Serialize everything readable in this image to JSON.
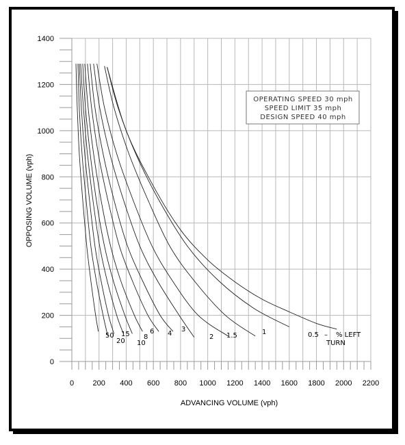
{
  "chart_data": {
    "type": "line",
    "title": "",
    "xlabel": "ADVANCING VOLUME (vph)",
    "ylabel": "OPPOSING VOLUME (vph)",
    "xlim": [
      0,
      2200
    ],
    "ylim": [
      0,
      1400
    ],
    "x_ticks": [
      "0",
      "200",
      "400",
      "600",
      "800",
      "1000",
      "1200",
      "1400",
      "1600",
      "1800",
      "2000",
      "2200"
    ],
    "y_ticks": [
      "0",
      "200",
      "400",
      "600",
      "800",
      "1000",
      "1200",
      "1400"
    ],
    "grid": true,
    "annotation_lines": [
      "OPERATING SPEED 30 mph",
      "SPEED LIMIT 35 mph",
      "DESIGN SPEED 40 mph"
    ],
    "legend_placement": "top-right",
    "left_turn_label": "% LEFT",
    "left_turn_label2": "TURN",
    "series": [
      {
        "name": "50",
        "points": [
          [
            30,
            1290
          ],
          [
            40,
            1100
          ],
          [
            55,
            900
          ],
          [
            80,
            700
          ],
          [
            110,
            500
          ],
          [
            140,
            350
          ],
          [
            175,
            200
          ],
          [
            195,
            130
          ]
        ]
      },
      {
        "name": "20",
        "points": [
          [
            45,
            1290
          ],
          [
            55,
            1100
          ],
          [
            75,
            900
          ],
          [
            105,
            700
          ],
          [
            140,
            500
          ],
          [
            180,
            350
          ],
          [
            230,
            200
          ],
          [
            265,
            110
          ]
        ]
      },
      {
        "name": "15",
        "points": [
          [
            55,
            1290
          ],
          [
            70,
            1100
          ],
          [
            95,
            900
          ],
          [
            130,
            700
          ],
          [
            170,
            500
          ],
          [
            215,
            350
          ],
          [
            270,
            200
          ],
          [
            310,
            120
          ]
        ]
      },
      {
        "name": "10",
        "points": [
          [
            65,
            1290
          ],
          [
            85,
            1100
          ],
          [
            115,
            900
          ],
          [
            155,
            700
          ],
          [
            205,
            500
          ],
          [
            260,
            350
          ],
          [
            330,
            200
          ],
          [
            380,
            120
          ]
        ]
      },
      {
        "name": "8",
        "points": [
          [
            80,
            1290
          ],
          [
            100,
            1100
          ],
          [
            135,
            900
          ],
          [
            180,
            700
          ],
          [
            240,
            500
          ],
          [
            305,
            350
          ],
          [
            390,
            200
          ],
          [
            445,
            120
          ]
        ]
      },
      {
        "name": "6",
        "points": [
          [
            95,
            1290
          ],
          [
            120,
            1100
          ],
          [
            160,
            900
          ],
          [
            215,
            700
          ],
          [
            285,
            500
          ],
          [
            360,
            350
          ],
          [
            460,
            200
          ],
          [
            520,
            130
          ]
        ]
      },
      {
        "name": "4",
        "points": [
          [
            115,
            1290
          ],
          [
            145,
            1100
          ],
          [
            195,
            900
          ],
          [
            265,
            700
          ],
          [
            350,
            500
          ],
          [
            445,
            350
          ],
          [
            560,
            200
          ],
          [
            640,
            130
          ]
        ]
      },
      {
        "name": "3",
        "points": [
          [
            135,
            1290
          ],
          [
            170,
            1100
          ],
          [
            230,
            900
          ],
          [
            310,
            700
          ],
          [
            410,
            500
          ],
          [
            520,
            350
          ],
          [
            650,
            200
          ],
          [
            745,
            130
          ]
        ]
      },
      {
        "name": "2",
        "points": [
          [
            160,
            1290
          ],
          [
            205,
            1100
          ],
          [
            280,
            900
          ],
          [
            380,
            700
          ],
          [
            500,
            500
          ],
          [
            630,
            350
          ],
          [
            790,
            200
          ],
          [
            900,
            105
          ]
        ]
      },
      {
        "name": "1.5",
        "points": [
          [
            185,
            1290
          ],
          [
            240,
            1100
          ],
          [
            330,
            900
          ],
          [
            450,
            700
          ],
          [
            590,
            500
          ],
          [
            740,
            350
          ],
          [
            930,
            200
          ],
          [
            1150,
            110
          ]
        ]
      },
      {
        "name": "1",
        "points": [
          [
            240,
            1280
          ],
          [
            310,
            1100
          ],
          [
            420,
            900
          ],
          [
            560,
            700
          ],
          [
            720,
            500
          ],
          [
            900,
            350
          ],
          [
            1130,
            200
          ],
          [
            1350,
            110
          ]
        ]
      },
      {
        "name": "0.5",
        "points": [
          [
            260,
            1275
          ],
          [
            340,
            1100
          ],
          [
            470,
            900
          ],
          [
            640,
            700
          ],
          [
            850,
            500
          ],
          [
            1080,
            350
          ],
          [
            1340,
            230
          ],
          [
            1600,
            150
          ]
        ]
      },
      {
        "name": "",
        "points": [
          [
            260,
            1275
          ],
          [
            400,
            1000
          ],
          [
            600,
            760
          ],
          [
            800,
            570
          ],
          [
            1000,
            440
          ],
          [
            1200,
            345
          ],
          [
            1400,
            270
          ],
          [
            1600,
            215
          ],
          [
            1800,
            165
          ],
          [
            1950,
            140
          ]
        ]
      }
    ]
  }
}
